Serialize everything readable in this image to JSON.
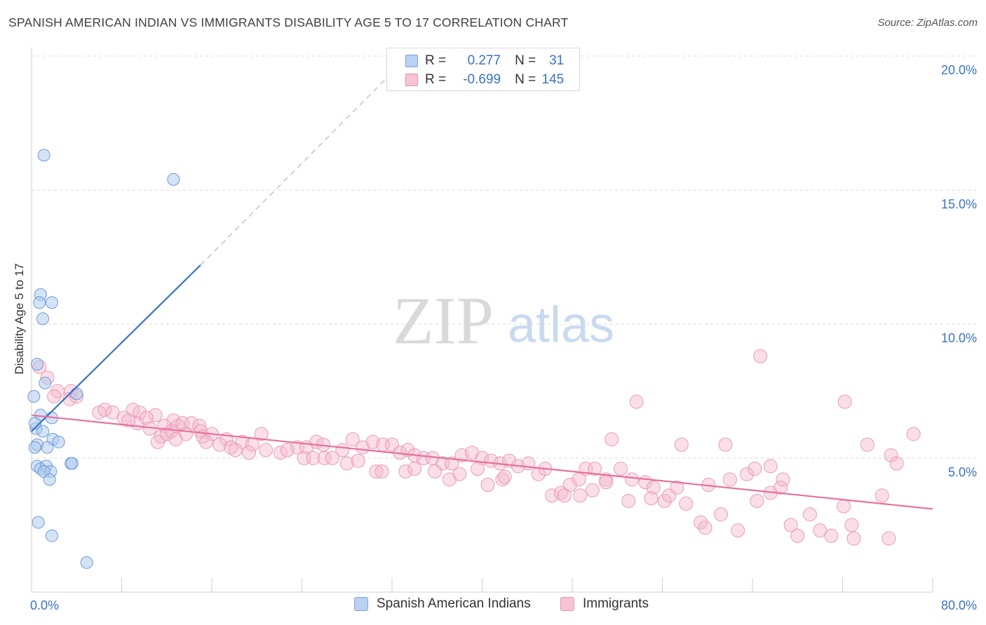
{
  "title": "SPANISH AMERICAN INDIAN VS IMMIGRANTS DISABILITY AGE 5 TO 17 CORRELATION CHART",
  "source": "Source: ZipAtlas.com",
  "watermark": {
    "zip": "ZIP",
    "atlas": "atlas"
  },
  "colors": {
    "blue": "#3a72c8",
    "blue_fill": "#a9c7ee",
    "pink": "#e8709c",
    "pink_fill": "#f5b8cc",
    "axis_label": "#3a72c8"
  },
  "legend": {
    "rows": [
      {
        "r_label": "R =",
        "r_value": "0.277",
        "n_label": "N =",
        "n_value": "31"
      },
      {
        "r_label": "R =",
        "r_value": "-0.699",
        "n_label": "N =",
        "n_value": "145"
      }
    ]
  },
  "bottom_legend": [
    "Spanish American Indians",
    "Immigrants"
  ],
  "chart_data": {
    "type": "scatter",
    "ylabel": "Disability Age 5 to 17",
    "xlim": [
      0,
      80
    ],
    "ylim": [
      0,
      20
    ],
    "x_tick_labels": [
      "0.0%",
      "80.0%"
    ],
    "y_ticks": [
      5,
      10,
      15,
      20
    ],
    "y_tick_labels": [
      "5.0%",
      "10.0%",
      "15.0%",
      "20.0%"
    ],
    "grid": true,
    "series": [
      {
        "name": "Spanish American Indians",
        "trend": {
          "x0": 0,
          "y0": 6.0,
          "x1": 15,
          "y1": 12.2,
          "extend_to_x": 33,
          "extend_to_y": 19.8
        },
        "points": [
          [
            1.1,
            16.3
          ],
          [
            12.6,
            15.4
          ],
          [
            0.8,
            11.1
          ],
          [
            0.7,
            10.8
          ],
          [
            1.8,
            10.8
          ],
          [
            1.0,
            10.2
          ],
          [
            0.5,
            8.5
          ],
          [
            1.2,
            7.8
          ],
          [
            0.2,
            7.3
          ],
          [
            4.0,
            7.4
          ],
          [
            0.4,
            6.1
          ],
          [
            1.0,
            6.0
          ],
          [
            0.8,
            6.6
          ],
          [
            1.8,
            6.5
          ],
          [
            1.9,
            5.7
          ],
          [
            2.4,
            5.6
          ],
          [
            0.5,
            5.5
          ],
          [
            0.3,
            5.4
          ],
          [
            1.4,
            5.4
          ],
          [
            0.5,
            4.7
          ],
          [
            0.8,
            4.6
          ],
          [
            1.3,
            4.7
          ],
          [
            1.7,
            4.5
          ],
          [
            1.1,
            4.5
          ],
          [
            1.6,
            4.2
          ],
          [
            3.5,
            4.8
          ],
          [
            3.6,
            4.8
          ],
          [
            0.6,
            2.6
          ],
          [
            1.8,
            2.1
          ],
          [
            4.9,
            1.1
          ],
          [
            0.3,
            6.3
          ]
        ]
      },
      {
        "name": "Immigrants",
        "trend": {
          "x0": 0,
          "y0": 6.6,
          "x1": 80,
          "y1": 3.1
        },
        "points": [
          [
            0.7,
            8.4
          ],
          [
            1.4,
            8.0
          ],
          [
            2.3,
            7.5
          ],
          [
            3.5,
            7.5
          ],
          [
            3.4,
            7.2
          ],
          [
            4.0,
            7.3
          ],
          [
            2.0,
            7.3
          ],
          [
            6.0,
            6.7
          ],
          [
            6.5,
            6.8
          ],
          [
            7.2,
            6.7
          ],
          [
            8.2,
            6.5
          ],
          [
            9.0,
            6.8
          ],
          [
            9.6,
            6.7
          ],
          [
            9.4,
            6.3
          ],
          [
            8.6,
            6.4
          ],
          [
            11.0,
            6.6
          ],
          [
            10.2,
            6.5
          ],
          [
            12.6,
            6.4
          ],
          [
            13.0,
            6.2
          ],
          [
            13.4,
            6.3
          ],
          [
            14.2,
            6.3
          ],
          [
            10.5,
            6.1
          ],
          [
            11.8,
            6.2
          ],
          [
            12.4,
            6.0
          ],
          [
            14.9,
            6.2
          ],
          [
            15.0,
            6.0
          ],
          [
            13.7,
            5.9
          ],
          [
            11.5,
            5.8
          ],
          [
            12.0,
            5.9
          ],
          [
            15.2,
            5.8
          ],
          [
            16.0,
            5.9
          ],
          [
            11.2,
            5.6
          ],
          [
            12.8,
            5.7
          ],
          [
            15.5,
            5.6
          ],
          [
            17.3,
            5.7
          ],
          [
            18.7,
            5.6
          ],
          [
            19.6,
            5.5
          ],
          [
            16.7,
            5.5
          ],
          [
            17.7,
            5.4
          ],
          [
            18.1,
            5.3
          ],
          [
            19.3,
            5.2
          ],
          [
            20.4,
            5.9
          ],
          [
            22.1,
            5.2
          ],
          [
            23.6,
            5.4
          ],
          [
            24.4,
            5.4
          ],
          [
            25.3,
            5.6
          ],
          [
            25.9,
            5.5
          ],
          [
            20.8,
            5.3
          ],
          [
            22.7,
            5.3
          ],
          [
            24.2,
            5.0
          ],
          [
            25.0,
            5.0
          ],
          [
            26.0,
            5.0
          ],
          [
            26.7,
            5.0
          ],
          [
            27.6,
            5.3
          ],
          [
            28.5,
            5.7
          ],
          [
            29.4,
            5.4
          ],
          [
            30.3,
            5.6
          ],
          [
            31.2,
            5.5
          ],
          [
            32.0,
            5.5
          ],
          [
            32.7,
            5.2
          ],
          [
            33.4,
            5.3
          ],
          [
            34.0,
            5.1
          ],
          [
            34.8,
            5.0
          ],
          [
            35.6,
            5.0
          ],
          [
            36.5,
            4.8
          ],
          [
            37.3,
            4.8
          ],
          [
            38.2,
            5.1
          ],
          [
            39.1,
            5.2
          ],
          [
            40.0,
            5.0
          ],
          [
            40.8,
            4.9
          ],
          [
            41.6,
            4.8
          ],
          [
            42.4,
            4.9
          ],
          [
            28.0,
            4.8
          ],
          [
            29.0,
            4.9
          ],
          [
            30.6,
            4.5
          ],
          [
            31.1,
            4.5
          ],
          [
            33.2,
            4.5
          ],
          [
            34.0,
            4.6
          ],
          [
            35.8,
            4.5
          ],
          [
            37.1,
            4.2
          ],
          [
            38.0,
            4.4
          ],
          [
            39.6,
            4.6
          ],
          [
            40.5,
            4.0
          ],
          [
            41.8,
            4.2
          ],
          [
            42.0,
            4.3
          ],
          [
            43.2,
            4.7
          ],
          [
            44.1,
            4.8
          ],
          [
            45.0,
            4.4
          ],
          [
            45.6,
            4.6
          ],
          [
            47.8,
            4.0
          ],
          [
            48.6,
            4.2
          ],
          [
            49.2,
            4.6
          ],
          [
            50.0,
            4.6
          ],
          [
            51.0,
            4.2
          ],
          [
            52.3,
            4.6
          ],
          [
            53.3,
            4.2
          ],
          [
            54.5,
            4.1
          ],
          [
            55.2,
            3.9
          ],
          [
            56.2,
            3.4
          ],
          [
            56.6,
            3.6
          ],
          [
            57.3,
            3.9
          ],
          [
            58.1,
            3.3
          ],
          [
            59.4,
            2.6
          ],
          [
            59.8,
            2.4
          ],
          [
            61.2,
            2.9
          ],
          [
            62.7,
            2.3
          ],
          [
            64.4,
            3.4
          ],
          [
            65.6,
            3.7
          ],
          [
            66.5,
            3.9
          ],
          [
            67.4,
            2.5
          ],
          [
            68.0,
            2.1
          ],
          [
            69.1,
            2.9
          ],
          [
            70.0,
            2.3
          ],
          [
            71.0,
            2.1
          ],
          [
            72.1,
            3.2
          ],
          [
            73.0,
            2.0
          ],
          [
            60.1,
            4.0
          ],
          [
            62.0,
            4.2
          ],
          [
            63.5,
            4.4
          ],
          [
            64.2,
            4.6
          ],
          [
            65.6,
            4.7
          ],
          [
            66.7,
            4.2
          ],
          [
            51.0,
            4.1
          ],
          [
            46.2,
            3.6
          ],
          [
            47.0,
            3.7
          ],
          [
            47.3,
            3.6
          ],
          [
            48.7,
            3.6
          ],
          [
            49.8,
            3.8
          ],
          [
            53.0,
            3.4
          ],
          [
            55.0,
            3.5
          ],
          [
            76.3,
            5.1
          ],
          [
            76.8,
            4.8
          ],
          [
            74.2,
            5.5
          ],
          [
            75.5,
            3.6
          ],
          [
            78.3,
            5.9
          ],
          [
            72.2,
            7.1
          ],
          [
            64.7,
            8.8
          ],
          [
            53.7,
            7.1
          ],
          [
            51.5,
            5.7
          ],
          [
            57.7,
            5.5
          ],
          [
            61.6,
            5.5
          ],
          [
            72.8,
            2.5
          ],
          [
            76.1,
            2.0
          ]
        ]
      }
    ]
  }
}
